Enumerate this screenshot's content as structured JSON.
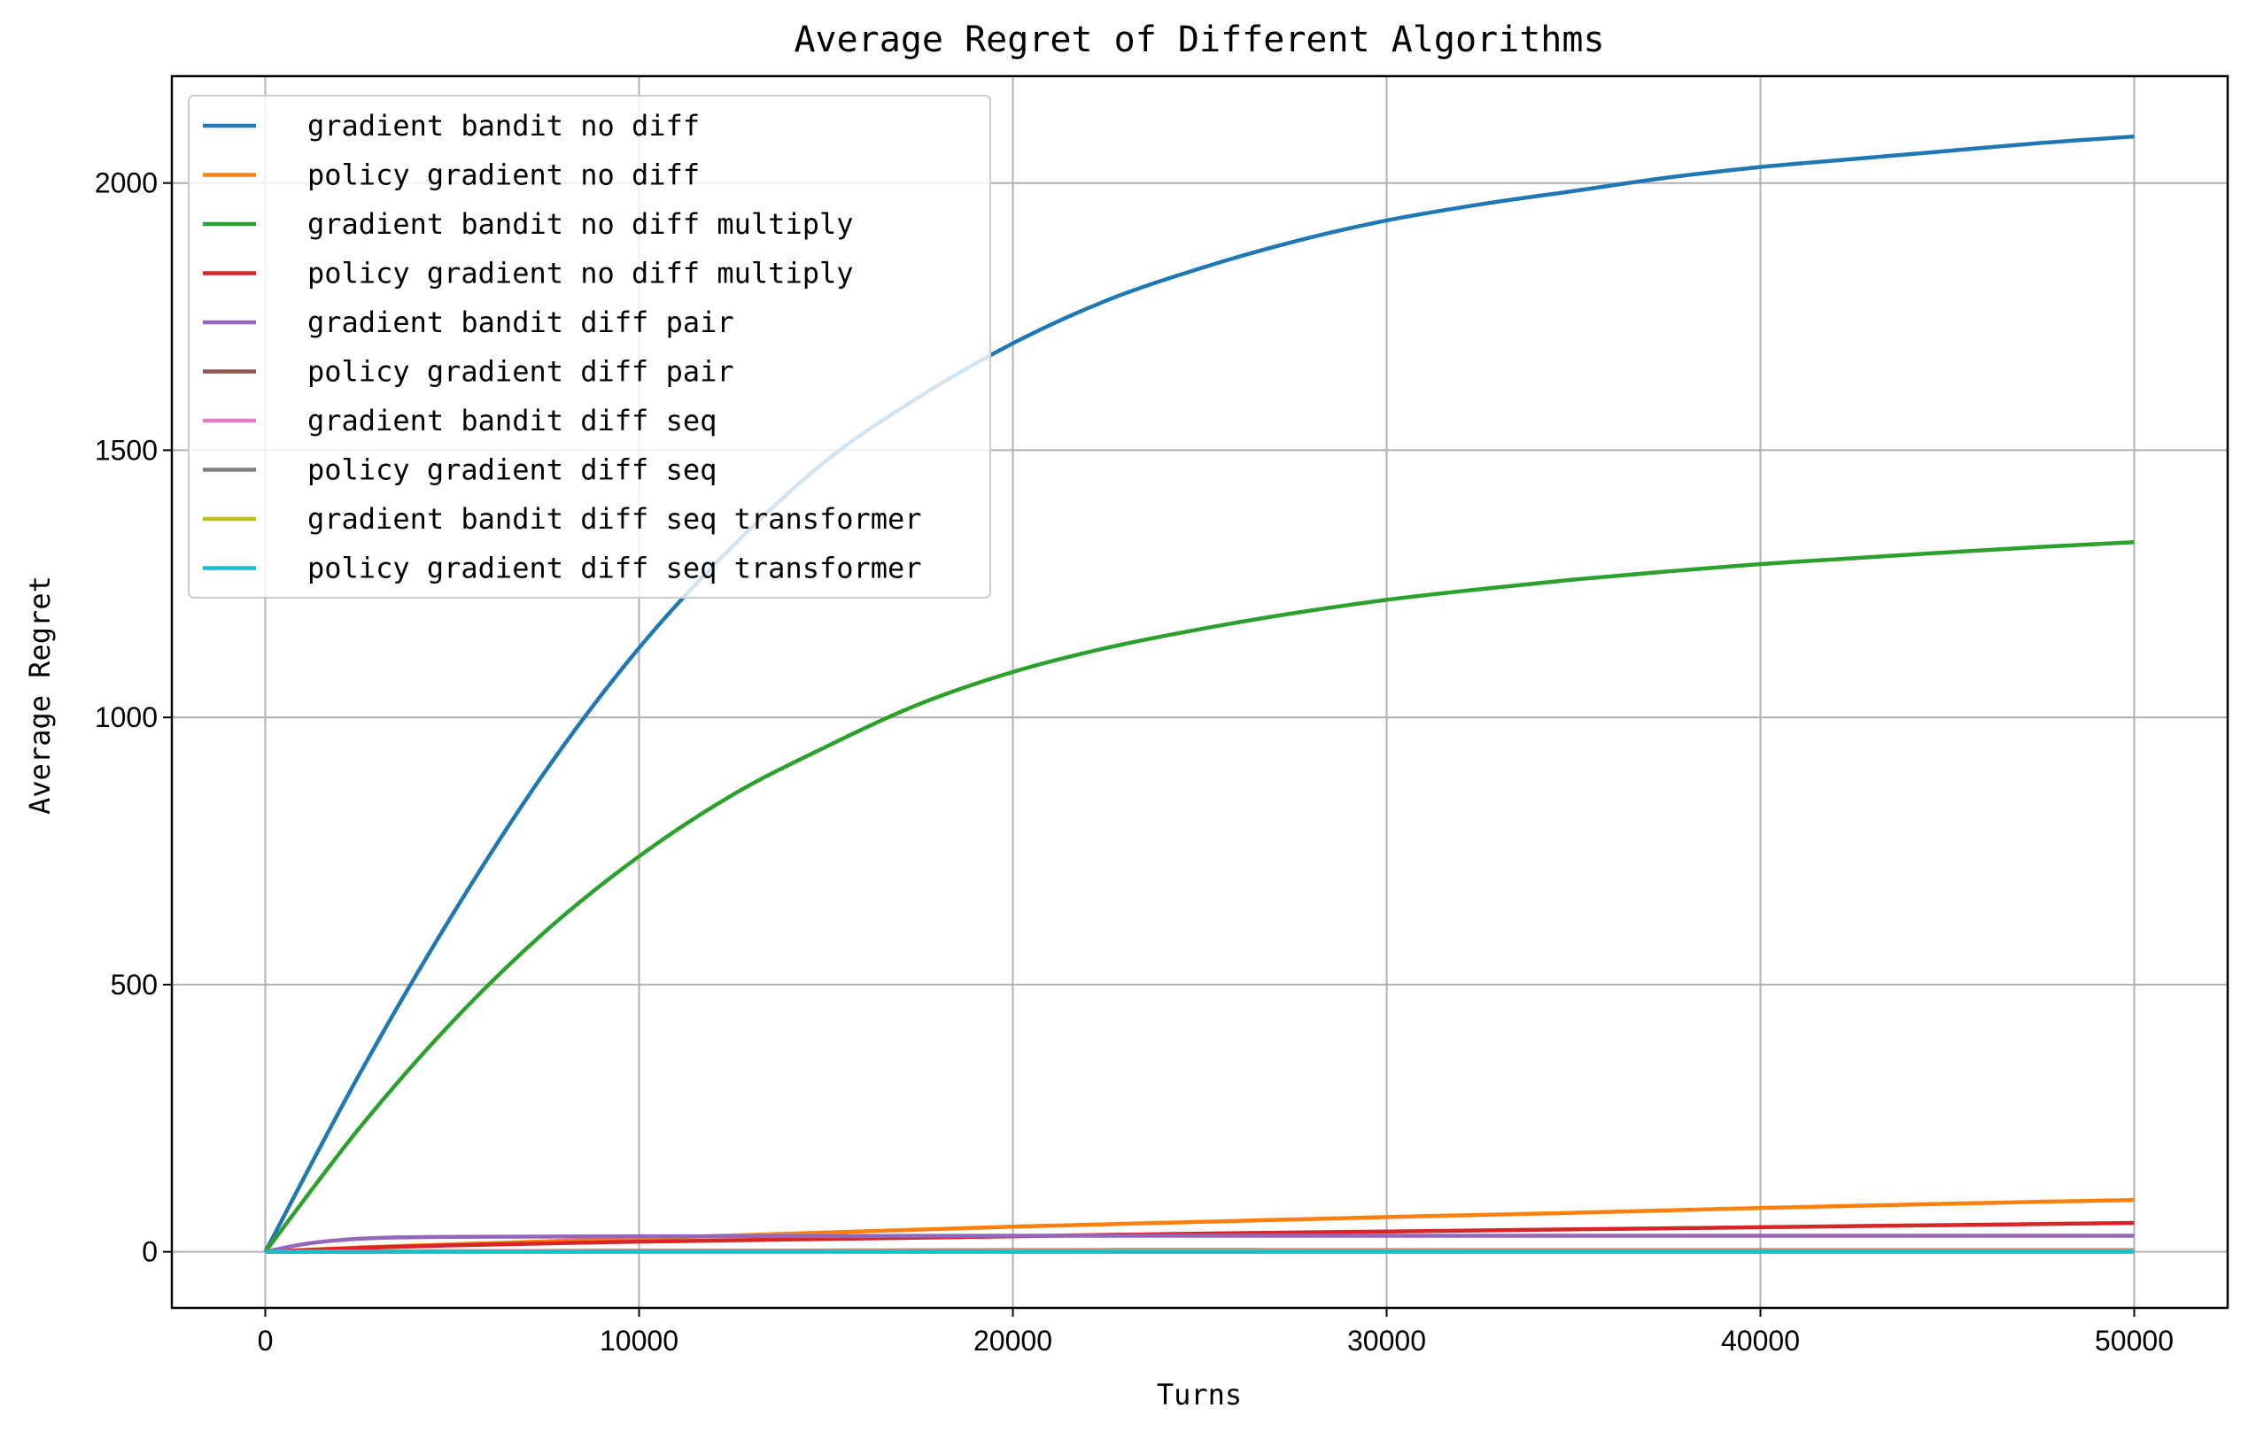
{
  "chart_data": {
    "type": "line",
    "title": "Average Regret of Different Algorithms",
    "xlabel": "Turns",
    "ylabel": "Average Regret",
    "xlim": [
      -2500,
      52500
    ],
    "ylim": [
      -105,
      2200
    ],
    "xticks": [
      0,
      10000,
      20000,
      30000,
      40000,
      50000
    ],
    "yticks": [
      0,
      500,
      1000,
      1500,
      2000
    ],
    "grid": true,
    "legend_position": "top-left",
    "series": [
      {
        "name": "gradient bandit no diff",
        "color": "#1f77b4",
        "x": [
          0,
          2500,
          5000,
          7500,
          10000,
          12500,
          15000,
          17500,
          20000,
          22500,
          25000,
          27500,
          30000,
          32500,
          35000,
          37500,
          40000,
          42500,
          45000,
          47500,
          50000
        ],
        "y": [
          0,
          330,
          630,
          900,
          1130,
          1320,
          1480,
          1600,
          1700,
          1780,
          1840,
          1890,
          1930,
          1960,
          1985,
          2010,
          2030,
          2045,
          2060,
          2075,
          2087
        ]
      },
      {
        "name": "policy gradient no diff",
        "color": "#ff7f0e",
        "x": [
          0,
          2500,
          5000,
          10000,
          15000,
          20000,
          25000,
          30000,
          35000,
          40000,
          45000,
          50000
        ],
        "y": [
          0,
          8,
          14,
          25,
          36,
          47,
          56,
          65,
          73,
          82,
          90,
          97
        ]
      },
      {
        "name": "gradient bandit no diff multiply",
        "color": "#2ca02c",
        "x": [
          0,
          2500,
          5000,
          7500,
          10000,
          12500,
          15000,
          17500,
          20000,
          22500,
          25000,
          27500,
          30000,
          32500,
          35000,
          37500,
          40000,
          42500,
          45000,
          47500,
          50000
        ],
        "y": [
          0,
          230,
          430,
          600,
          740,
          855,
          945,
          1025,
          1085,
          1130,
          1165,
          1195,
          1220,
          1240,
          1258,
          1273,
          1287,
          1298,
          1309,
          1319,
          1328
        ]
      },
      {
        "name": "policy gradient no diff multiply",
        "color": "#d62728",
        "x": [
          0,
          2500,
          5000,
          10000,
          15000,
          20000,
          25000,
          30000,
          35000,
          40000,
          45000,
          50000
        ],
        "y": [
          0,
          7,
          12,
          19,
          24,
          29,
          34,
          38,
          42,
          46,
          50,
          54
        ]
      },
      {
        "name": "gradient bandit diff pair",
        "color": "#9467bd",
        "x": [
          0,
          1000,
          2000,
          3000,
          5000,
          10000,
          20000,
          30000,
          40000,
          50000
        ],
        "y": [
          0,
          14,
          22,
          26,
          28,
          29,
          30,
          30,
          30,
          30
        ]
      },
      {
        "name": "policy gradient diff pair",
        "color": "#8c564b",
        "x": [
          0,
          10000,
          20000,
          30000,
          40000,
          50000
        ],
        "y": [
          0,
          2,
          3,
          3,
          3,
          3
        ]
      },
      {
        "name": "gradient bandit diff seq",
        "color": "#e377c2",
        "x": [
          0,
          10000,
          20000,
          30000,
          40000,
          50000
        ],
        "y": [
          0,
          2,
          2,
          2,
          2,
          2
        ]
      },
      {
        "name": "policy gradient diff seq",
        "color": "#7f7f7f",
        "x": [
          0,
          10000,
          20000,
          30000,
          40000,
          50000
        ],
        "y": [
          0,
          1,
          1,
          1,
          1,
          1
        ]
      },
      {
        "name": "gradient bandit diff seq transformer",
        "color": "#bcbd22",
        "x": [
          0,
          10000,
          20000,
          30000,
          40000,
          50000
        ],
        "y": [
          0,
          1,
          1,
          1,
          1,
          1
        ]
      },
      {
        "name": "policy gradient diff seq transformer",
        "color": "#17becf",
        "x": [
          0,
          10000,
          20000,
          30000,
          40000,
          50000
        ],
        "y": [
          0,
          0,
          0,
          0,
          0,
          0
        ]
      }
    ]
  }
}
